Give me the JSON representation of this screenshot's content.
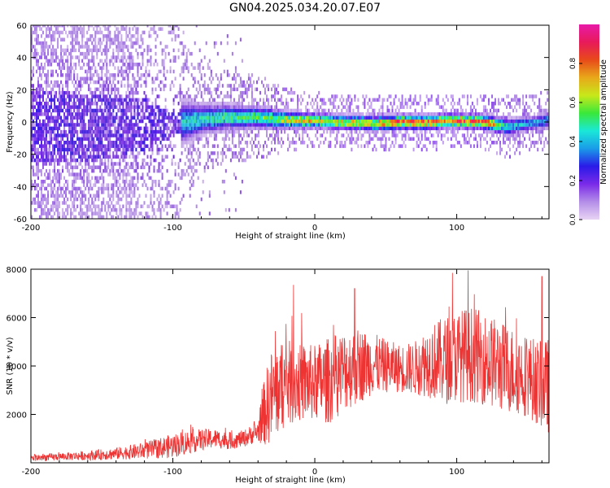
{
  "title": "GN04.2025.034.20.07.E07",
  "chart_data": [
    {
      "type": "heatmap",
      "xlabel": "Height of straight line (km)",
      "ylabel": "Frequency (Hz)",
      "xlim": [
        -200,
        165
      ],
      "ylim": [
        -60,
        60
      ],
      "xticks": [
        -200,
        -100,
        0,
        100
      ],
      "yticks": [
        -60,
        -40,
        -20,
        0,
        20,
        40,
        60
      ],
      "colorbar": {
        "label": "Normalized spectral amplitude",
        "range": [
          0,
          1
        ],
        "ticks": [
          0.0,
          0.2,
          0.4,
          0.6,
          0.8
        ],
        "colors": [
          "#e8d4f4",
          "#b48ee8",
          "#7a2be8",
          "#2a1ae8",
          "#1a9be8",
          "#1ae8d8",
          "#3ae83a",
          "#c8e81a",
          "#e8a81a",
          "#e84a1a",
          "#e81a5a",
          "#e81aa8"
        ]
      },
      "ridge": {
        "x": [
          -200,
          -160,
          -120,
          -100,
          -80,
          -60,
          -40,
          -20,
          0,
          20,
          40,
          60,
          80,
          100,
          120,
          135,
          150,
          165
        ],
        "frequency": [
          -3,
          -3,
          -2,
          -1,
          2,
          3,
          3,
          1,
          1,
          0,
          -1,
          0,
          0,
          1,
          0,
          -3,
          -1,
          1
        ],
        "peak_amplitude": [
          0.2,
          0.2,
          0.3,
          0.45,
          0.5,
          0.55,
          0.55,
          0.7,
          0.75,
          0.7,
          0.75,
          0.9,
          0.85,
          0.85,
          0.9,
          0.5,
          0.4,
          0.4
        ],
        "band_halfwidth": [
          60,
          60,
          45,
          20,
          12,
          10,
          9,
          7,
          6,
          6,
          6,
          6,
          6,
          6,
          6,
          7,
          6,
          7
        ]
      }
    },
    {
      "type": "line",
      "xlabel": "Height of straight line (km)",
      "ylabel": "SNR (10 * v/v)",
      "xlim": [
        -200,
        165
      ],
      "ylim": [
        0,
        8000
      ],
      "xticks": [
        -200,
        -100,
        0,
        100
      ],
      "yticks": [
        2000,
        4000,
        6000,
        8000
      ],
      "color": "#ee3333",
      "series": [
        {
          "x": [
            -200,
            -180,
            -160,
            -140,
            -120,
            -100,
            -90,
            -80,
            -70,
            -60,
            -50,
            -40,
            -35,
            -30,
            -20,
            -10,
            0,
            10,
            20,
            30,
            40,
            50,
            60,
            70,
            80,
            90,
            100,
            110,
            120,
            130,
            140,
            150,
            160,
            165
          ],
          "values": [
            200,
            250,
            300,
            380,
            500,
            700,
            850,
            950,
            1000,
            900,
            1000,
            1300,
            2200,
            2800,
            3300,
            3300,
            3300,
            3400,
            3800,
            4000,
            4100,
            4000,
            3900,
            3900,
            4200,
            4200,
            4400,
            4500,
            4300,
            4000,
            3800,
            3600,
            3200,
            3200
          ],
          "noise_amplitude": [
            150,
            150,
            200,
            250,
            350,
            500,
            500,
            450,
            400,
            350,
            350,
            450,
            1500,
            2000,
            1800,
            1600,
            1600,
            1800,
            1700,
            1600,
            1300,
            1100,
            1000,
            1100,
            1500,
            1800,
            1900,
            2000,
            1900,
            1900,
            1800,
            1700,
            1800,
            2000
          ],
          "peaks": [
            {
              "x": -15,
              "y": 7350
            },
            {
              "x": 28,
              "y": 7200
            },
            {
              "x": 97,
              "y": 7850
            },
            {
              "x": 108,
              "y": 7950
            },
            {
              "x": 160,
              "y": 7700
            }
          ]
        }
      ]
    }
  ]
}
